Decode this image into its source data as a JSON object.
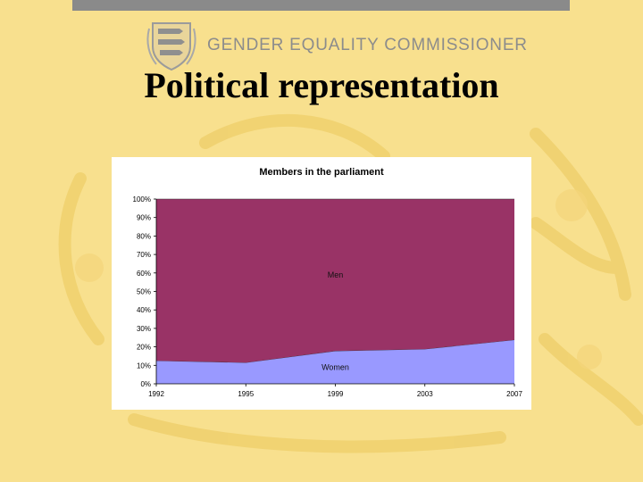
{
  "header": {
    "org_name": "GENDER EQUALITY COMMISSIONER",
    "slide_title": "Political representation"
  },
  "colors": {
    "background": "#f8e08e",
    "top_bar": "#8a8a8a",
    "men_series": "#993366",
    "women_series": "#9999ff"
  },
  "icons": [
    "crest-icon",
    "lion-watermark-icon"
  ],
  "chart_data": {
    "type": "area",
    "stacked": true,
    "normalized": true,
    "title": "Members in the parliament",
    "x": [
      "1992",
      "1995",
      "1999",
      "2003",
      "2007"
    ],
    "series": [
      {
        "name": "Women",
        "values": [
          12.5,
          11.5,
          17.8,
          18.8,
          23.8
        ]
      },
      {
        "name": "Men",
        "values": [
          87.5,
          88.5,
          82.2,
          81.2,
          76.2
        ]
      }
    ],
    "y_ticks": [
      "0%",
      "10%",
      "20%",
      "30%",
      "40%",
      "50%",
      "60%",
      "70%",
      "80%",
      "90%",
      "100%"
    ],
    "ylim": [
      0,
      100
    ],
    "grid": false,
    "legend": "inline labels"
  }
}
